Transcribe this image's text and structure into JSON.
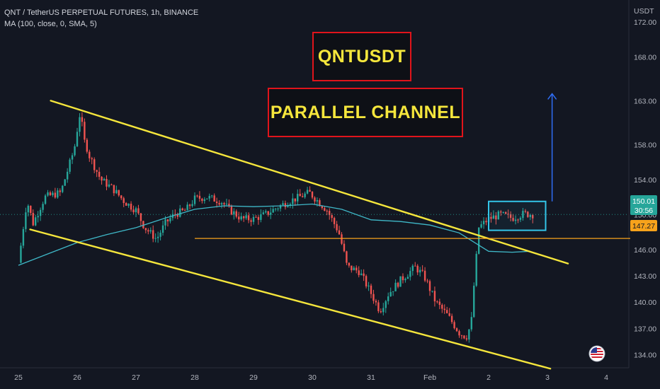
{
  "header": {
    "symbol_line": "QNT / TetherUS PERPETUAL FUTURES, 1h, BINANCE",
    "indicator_line": "MA (100, close, 0, SMA, 5)"
  },
  "annotations": {
    "title": "QNTUSDT",
    "subtitle": "PARALLEL CHANNEL"
  },
  "price_axis": {
    "unit": "USDT",
    "ticks": [
      "172.00",
      "168.00",
      "163.00",
      "158.00",
      "154.00",
      "150.00",
      "146.00",
      "143.00",
      "140.00",
      "137.00",
      "134.00"
    ]
  },
  "badges": {
    "last_price": "150.01",
    "countdown": "30:56",
    "level_price": "147.27"
  },
  "colors": {
    "background": "#131722",
    "up_candle": "#26a69a",
    "down_candle": "#ef5350",
    "channel_lines": "#f5e63c",
    "ma_line": "#3fb8c8",
    "level_line": "#f7a21b",
    "range_box": "#33c5e8",
    "target_arrow": "#2f6ef5",
    "annotation_border": "#e0141b",
    "annotation_text": "#f5e63c"
  },
  "chart_data": {
    "type": "candlestick",
    "timeframe": "1h",
    "x_ticks": [
      "25",
      "26",
      "27",
      "28",
      "29",
      "30",
      "31",
      "Feb",
      "2",
      "3",
      "4"
    ],
    "ylim": [
      132.5,
      174.5
    ],
    "anchors": [
      {
        "d": 0.0,
        "p": 144.5
      },
      {
        "d": 0.15,
        "p": 151.5
      },
      {
        "d": 0.25,
        "p": 149.0
      },
      {
        "d": 0.45,
        "p": 152.0
      },
      {
        "d": 0.72,
        "p": 152.5
      },
      {
        "d": 0.95,
        "p": 157.5
      },
      {
        "d": 1.05,
        "p": 161.5
      },
      {
        "d": 1.15,
        "p": 157.5
      },
      {
        "d": 1.4,
        "p": 154.0
      },
      {
        "d": 1.6,
        "p": 153.0
      },
      {
        "d": 1.8,
        "p": 151.5
      },
      {
        "d": 2.0,
        "p": 150.5
      },
      {
        "d": 2.15,
        "p": 148.5
      },
      {
        "d": 2.35,
        "p": 147.2
      },
      {
        "d": 2.5,
        "p": 149.0
      },
      {
        "d": 2.65,
        "p": 150.0
      },
      {
        "d": 2.85,
        "p": 150.5
      },
      {
        "d": 3.0,
        "p": 151.8
      },
      {
        "d": 3.2,
        "p": 152.0
      },
      {
        "d": 3.45,
        "p": 151.5
      },
      {
        "d": 3.6,
        "p": 150.5
      },
      {
        "d": 3.8,
        "p": 149.5
      },
      {
        "d": 4.0,
        "p": 149.5
      },
      {
        "d": 4.2,
        "p": 150.0
      },
      {
        "d": 4.4,
        "p": 150.8
      },
      {
        "d": 4.6,
        "p": 151.5
      },
      {
        "d": 4.78,
        "p": 152.0
      },
      {
        "d": 4.95,
        "p": 152.5
      },
      {
        "d": 5.1,
        "p": 151.5
      },
      {
        "d": 5.25,
        "p": 150.5
      },
      {
        "d": 5.45,
        "p": 148.0
      },
      {
        "d": 5.6,
        "p": 144.0
      },
      {
        "d": 5.8,
        "p": 143.5
      },
      {
        "d": 6.0,
        "p": 141.0
      },
      {
        "d": 6.15,
        "p": 139.0
      },
      {
        "d": 6.3,
        "p": 141.0
      },
      {
        "d": 6.5,
        "p": 142.5
      },
      {
        "d": 6.75,
        "p": 144.0
      },
      {
        "d": 6.9,
        "p": 143.0
      },
      {
        "d": 7.1,
        "p": 140.0
      },
      {
        "d": 7.3,
        "p": 138.5
      },
      {
        "d": 7.5,
        "p": 136.5
      },
      {
        "d": 7.62,
        "p": 136.0
      },
      {
        "d": 7.7,
        "p": 137.5
      },
      {
        "d": 7.78,
        "p": 144.5
      },
      {
        "d": 7.83,
        "p": 148.5
      },
      {
        "d": 8.0,
        "p": 149.5
      },
      {
        "d": 8.2,
        "p": 150.0
      },
      {
        "d": 8.4,
        "p": 149.6
      },
      {
        "d": 8.6,
        "p": 150.1
      },
      {
        "d": 8.75,
        "p": 150.01
      }
    ],
    "moving_average": {
      "name": "MA (100, close, 0, SMA, 5)",
      "points": [
        {
          "d": 0.0,
          "p": 144.2
        },
        {
          "d": 0.5,
          "p": 145.5
        },
        {
          "d": 1.0,
          "p": 146.8
        },
        {
          "d": 1.5,
          "p": 147.7
        },
        {
          "d": 2.0,
          "p": 148.5
        },
        {
          "d": 2.5,
          "p": 149.6
        },
        {
          "d": 3.0,
          "p": 150.6
        },
        {
          "d": 3.5,
          "p": 151.0
        },
        {
          "d": 4.0,
          "p": 150.9
        },
        {
          "d": 4.5,
          "p": 151.0
        },
        {
          "d": 5.0,
          "p": 151.2
        },
        {
          "d": 5.5,
          "p": 150.6
        },
        {
          "d": 6.0,
          "p": 149.4
        },
        {
          "d": 6.5,
          "p": 149.2
        },
        {
          "d": 7.0,
          "p": 148.8
        },
        {
          "d": 7.5,
          "p": 147.9
        },
        {
          "d": 8.0,
          "p": 145.8
        },
        {
          "d": 8.4,
          "p": 145.7
        },
        {
          "d": 8.7,
          "p": 145.8
        }
      ]
    },
    "drawings": {
      "channel_upper": [
        {
          "d": 0.55,
          "p": 163.0
        },
        {
          "d": 9.35,
          "p": 144.4
        }
      ],
      "channel_lower": [
        {
          "d": 0.2,
          "p": 148.3
        },
        {
          "d": 9.05,
          "p": 132.4
        }
      ],
      "horizontal_level": {
        "p": 147.27,
        "from_d": 3.0
      },
      "range_box": {
        "from_d": 8.0,
        "to_d": 8.97,
        "low": 148.2,
        "high": 151.5
      },
      "target_arrow": {
        "d": 9.08,
        "from_p": 151.5,
        "to_p": 163.8
      }
    }
  }
}
